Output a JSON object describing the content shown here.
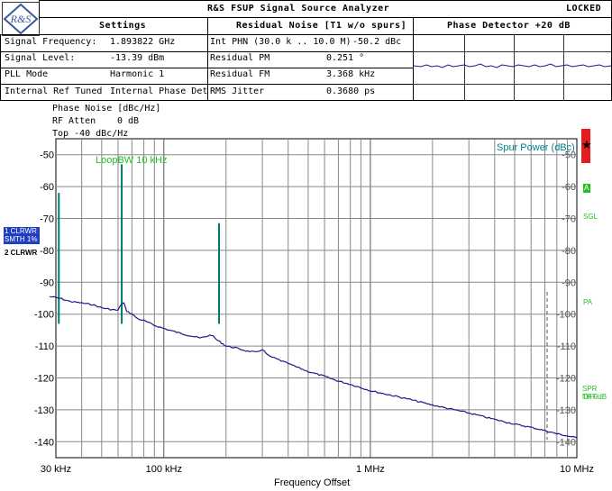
{
  "window": {
    "title": "R&S FSUP Signal Source Analyzer",
    "status": "LOCKED"
  },
  "settings": {
    "header": "Settings",
    "rows": [
      {
        "label": "Signal Frequency:",
        "value": "1.893822 GHz"
      },
      {
        "label": "Signal Level:",
        "value": "-13.39 dBm"
      },
      {
        "label": "PLL Mode",
        "value": "Harmonic 1"
      },
      {
        "label": "Internal Ref Tuned",
        "value": "Internal Phase Det"
      }
    ]
  },
  "residual": {
    "header": "Residual Noise [T1 w/o spurs]",
    "rows": [
      {
        "label": "Int PHN (30.0 k .. 10.0 M)",
        "value": "-50.2 dBc"
      },
      {
        "label": "Residual PM",
        "value": "0.251 °"
      },
      {
        "label": "Residual FM",
        "value": "3.368 kHz"
      },
      {
        "label": "RMS Jitter",
        "value": "0.3680 ps"
      }
    ]
  },
  "phase_detector": {
    "header": "Phase Detector +20 dB"
  },
  "plot_header": {
    "line1": "Phase Noise [dBc/Hz]",
    "atten_label": "RF Atten",
    "atten_value": "0 dB",
    "top_label": "Top -40 dBc/Hz"
  },
  "traces_panel": {
    "trace1_line1": "1 CLRWR",
    "trace1_line2": "SMTH 1%",
    "trace2": "2 CLRWR"
  },
  "right_panel": {
    "spur_power": "Spur Power (dBc)",
    "marker_a": "A",
    "sgl": "SGL",
    "pa": "PA",
    "spr_off": "SPR OFF",
    "th": "TH 0dB"
  },
  "annotations": {
    "loop_bw": "LoopBW 10 kHz"
  },
  "colors": {
    "trace": "#1a1a8c",
    "spur": "#007a6e",
    "label_green": "#22c022",
    "spur_text": "#00808a",
    "trace_panel_bg": "#1f3fbf",
    "alarm_red": "#e81c1c"
  },
  "chart_data": {
    "type": "line",
    "xlabel": "Frequency Offset",
    "x_scale": "log",
    "xlim": [
      30000,
      10000000
    ],
    "ylim": [
      -145,
      -45
    ],
    "grid": true,
    "x_ticks": [
      {
        "value": 30000,
        "label": "30 kHz"
      },
      {
        "value": 100000,
        "label": "100 kHz"
      },
      {
        "value": 1000000,
        "label": "1 MHz"
      },
      {
        "value": 10000000,
        "label": "10 MHz"
      }
    ],
    "y_ticks": [
      -50,
      -60,
      -70,
      -80,
      -90,
      -100,
      -110,
      -120,
      -130,
      -140
    ],
    "series": [
      {
        "x": [
          28000,
          30000,
          32000,
          35000,
          40000,
          45000,
          50000,
          55000,
          60000,
          62000,
          64000,
          66000,
          70000,
          75000,
          80000,
          90000,
          100000,
          120000,
          150000,
          170000,
          180000,
          190000,
          200000,
          220000,
          250000,
          280000,
          300000,
          320000,
          350000,
          400000,
          500000,
          600000,
          700000,
          800000,
          1000000,
          1500000,
          2000000,
          3000000,
          4000000,
          5000000,
          6000000,
          7000000,
          8000000,
          9000000,
          10000000
        ],
        "y": [
          -94.5,
          -94.8,
          -95.2,
          -96.0,
          -96.5,
          -97.0,
          -98.0,
          -98.5,
          -98.8,
          -97.0,
          -96.5,
          -99.0,
          -100.0,
          -101.5,
          -102.0,
          -103.5,
          -104.5,
          -106.0,
          -107.5,
          -106.5,
          -108.0,
          -109.0,
          -110.0,
          -110.5,
          -111.5,
          -112.0,
          -111.0,
          -113.0,
          -114.0,
          -115.5,
          -118.0,
          -119.5,
          -121.0,
          -122.0,
          -124.0,
          -126.5,
          -128.5,
          -131.0,
          -133.0,
          -134.5,
          -135.5,
          -136.5,
          -137.5,
          -138.2,
          -138.8
        ]
      },
      {
        "x": [
          31000,
          62500,
          185000
        ],
        "y": [
          -62,
          -53,
          -71.5
        ]
      }
    ]
  }
}
